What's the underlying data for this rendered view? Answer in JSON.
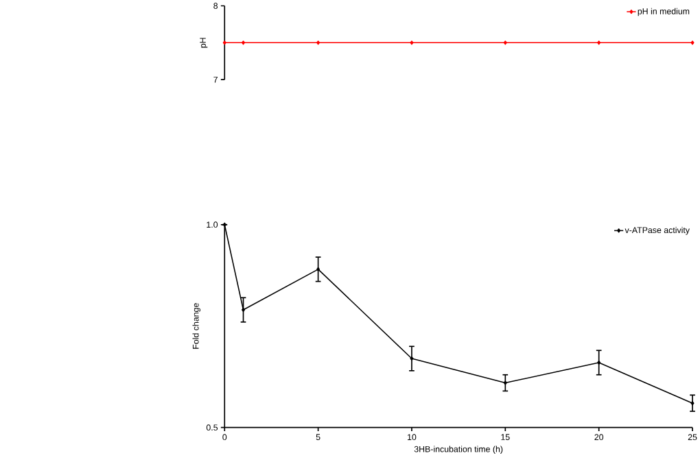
{
  "chart_data": [
    {
      "type": "line",
      "ylabel": "pH",
      "xlim": [
        0,
        25
      ],
      "ylim": [
        7,
        8
      ],
      "yticks": [
        7,
        8
      ],
      "tick_labels": "y",
      "x": [
        0,
        1,
        5,
        10,
        15,
        20,
        25
      ],
      "marker": "diamond",
      "line_style": "solid",
      "legend": "top right",
      "grid": false,
      "series": [
        {
          "name": "pH in medium",
          "color": "#ff0000",
          "values": [
            7.5,
            7.5,
            7.5,
            7.5,
            7.5,
            7.5,
            7.5
          ]
        }
      ]
    },
    {
      "type": "line",
      "xlabel": "3HB-incubation time (h)",
      "ylabel": "Fold change",
      "xlim": [
        0,
        25
      ],
      "xticks": [
        0,
        5,
        10,
        15,
        20,
        25
      ],
      "ylim": [
        0.5,
        1.0
      ],
      "yticks": [
        {
          "value": 0.5,
          "label": "0.5"
        },
        {
          "value": 1.0,
          "label": "1.0"
        }
      ],
      "x": [
        0,
        1,
        5,
        10,
        15,
        20,
        25
      ],
      "marker": "diamond",
      "line_style": "solid",
      "legend": "top right",
      "grid": false,
      "series": [
        {
          "name": "v-ATPase activity",
          "color": "#000000",
          "values": [
            1.0,
            0.79,
            0.89,
            0.67,
            0.61,
            0.66,
            0.56
          ],
          "errors": [
            null,
            0.03,
            0.03,
            0.03,
            0.02,
            0.03,
            0.02
          ]
        }
      ]
    }
  ]
}
